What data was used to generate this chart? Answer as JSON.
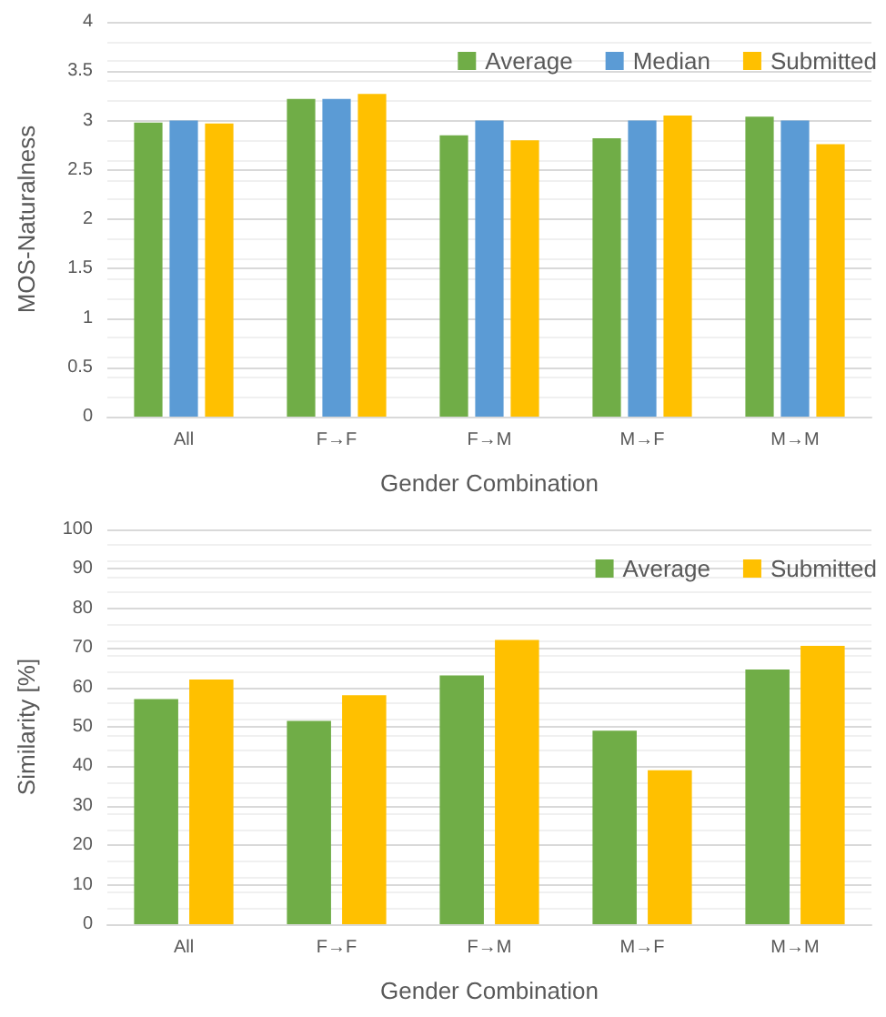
{
  "chart_data": [
    {
      "type": "bar",
      "xlabel": "Gender Combination",
      "ylabel": "MOS-Naturalness",
      "categories": [
        "All",
        "F→F",
        "F→M",
        "M→F",
        "M→M"
      ],
      "series": [
        {
          "name": "Average",
          "color": "#70ad47",
          "values": [
            2.98,
            3.22,
            2.85,
            2.82,
            3.04
          ]
        },
        {
          "name": "Median",
          "color": "#5b9bd5",
          "values": [
            3.0,
            3.22,
            3.0,
            3.0,
            3.0
          ]
        },
        {
          "name": "Submitted",
          "color": "#ffc000",
          "values": [
            2.97,
            3.27,
            2.8,
            3.05,
            2.76
          ]
        }
      ],
      "ylim": [
        0,
        4
      ],
      "yticks": [
        0,
        0.5,
        1,
        1.5,
        2,
        2.5,
        3,
        3.5,
        4
      ],
      "grid": "y",
      "legend": "top right"
    },
    {
      "type": "bar",
      "xlabel": "Gender Combination",
      "ylabel": "Similarity [%]",
      "categories": [
        "All",
        "F→F",
        "F→M",
        "M→F",
        "M→M"
      ],
      "series": [
        {
          "name": "Average",
          "color": "#70ad47",
          "values": [
            57,
            51.5,
            63,
            49,
            64.5
          ]
        },
        {
          "name": "Submitted",
          "color": "#ffc000",
          "values": [
            62,
            58,
            72,
            39,
            70.5
          ]
        }
      ],
      "ylim": [
        0,
        100
      ],
      "yticks": [
        0,
        10,
        20,
        30,
        40,
        50,
        60,
        70,
        80,
        90,
        100
      ],
      "grid": "y",
      "legend": "top right"
    }
  ]
}
